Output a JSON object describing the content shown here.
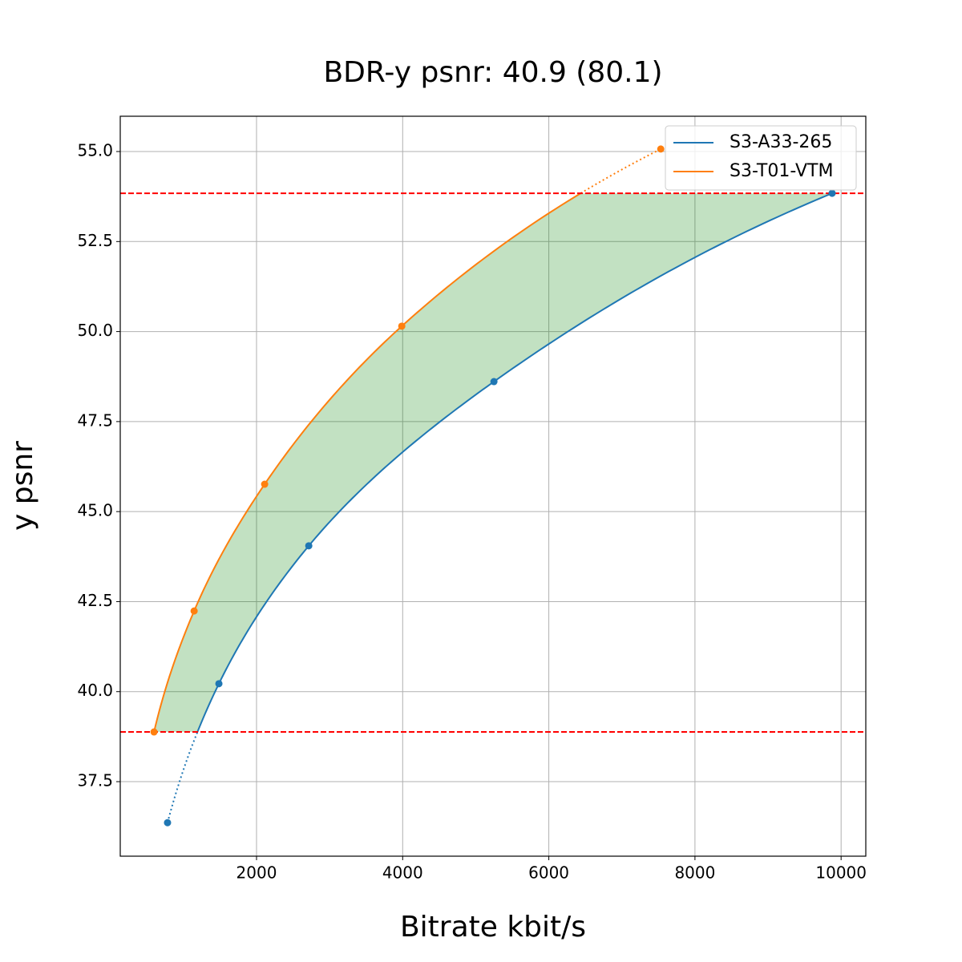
{
  "chart_data": {
    "type": "line",
    "title": "BDR-y psnr: 40.9 (80.1)",
    "x_label": "Bitrate kbit/s",
    "y_label": "y psnr",
    "xlim": [
      135,
      10338
    ],
    "ylim": [
      35.43,
      55.98
    ],
    "xticks": [
      2000,
      4000,
      6000,
      8000,
      10000
    ],
    "yticks": [
      37.5,
      {
        "value": 40,
        "label": "40.0"
      },
      42.5,
      {
        "value": 45,
        "label": "45.0"
      },
      47.5,
      {
        "value": 50,
        "label": "50.0"
      },
      52.5,
      {
        "value": 55,
        "label": "55.0"
      }
    ],
    "grid": true,
    "legend": "upper right",
    "series": [
      {
        "name": "S3-A33-265",
        "color": "#1f77b4",
        "x": [
          782,
          1485,
          2715,
          5249,
          9877
        ],
        "values": [
          36.36,
          40.22,
          44.05,
          48.61,
          53.84
        ]
      },
      {
        "name": "S3-T01-VTM",
        "color": "#ff7f0e",
        "x": [
          597,
          1146,
          2111,
          3988,
          7532
        ],
        "values": [
          38.88,
          42.24,
          45.76,
          50.15,
          55.07
        ]
      }
    ]
  }
}
